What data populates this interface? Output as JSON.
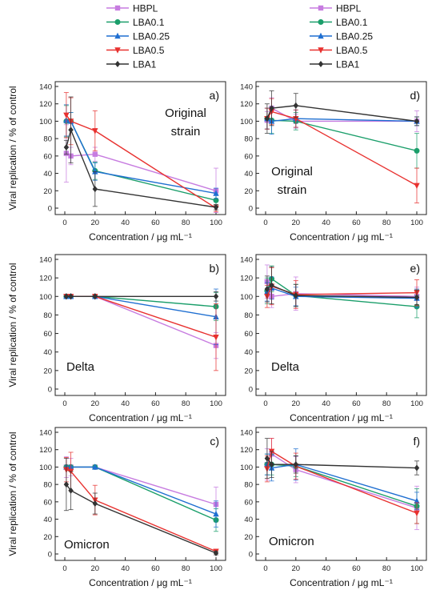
{
  "series_styles": [
    {
      "name": "HBPL",
      "color": "#c77ce0",
      "marker": "square"
    },
    {
      "name": "LBA0.1",
      "color": "#1a9e6a",
      "marker": "circle"
    },
    {
      "name": "LBA0.25",
      "color": "#1f6fd1",
      "marker": "triangle-up"
    },
    {
      "name": "LBA0.5",
      "color": "#e8312f",
      "marker": "triangle-down"
    },
    {
      "name": "LBA1",
      "color": "#333333",
      "marker": "diamond"
    }
  ],
  "chart_data": [
    {
      "panel": "a)",
      "annotation": [
        "Original",
        "strain"
      ],
      "type": "line",
      "xlabel": "Concentration / μg mL⁻¹",
      "ylabel": "Viral replication / % of control",
      "xlim": [
        0,
        100
      ],
      "ylim": [
        0,
        140
      ],
      "xticks": [
        0,
        20,
        40,
        60,
        80,
        100
      ],
      "yticks": [
        0,
        20,
        40,
        60,
        80,
        100,
        120,
        140
      ],
      "x": [
        1,
        4,
        20,
        100
      ],
      "series": [
        {
          "name": "HBPL",
          "values": [
            63,
            60,
            62,
            20
          ],
          "errors": [
            33,
            10,
            8,
            26
          ]
        },
        {
          "name": "LBA0.1",
          "values": [
            100,
            100,
            43,
            9
          ],
          "errors": [
            18,
            10,
            10,
            6
          ]
        },
        {
          "name": "LBA0.25",
          "values": [
            101,
            100,
            42,
            17
          ],
          "errors": [
            18,
            10,
            10,
            6
          ]
        },
        {
          "name": "LBA0.5",
          "values": [
            107,
            100,
            89,
            0
          ],
          "errors": [
            26,
            27,
            23,
            4
          ]
        },
        {
          "name": "LBA1",
          "values": [
            70,
            90,
            22,
            1
          ],
          "errors": [
            8,
            38,
            20,
            3
          ]
        }
      ]
    },
    {
      "panel": "d)",
      "annotation": [
        "Original",
        "strain"
      ],
      "type": "line",
      "xlabel": "Concentration / μg mL⁻¹",
      "ylabel": "",
      "xlim": [
        0,
        100
      ],
      "ylim": [
        0,
        140
      ],
      "xticks": [
        0,
        20,
        40,
        60,
        80,
        100
      ],
      "yticks": [
        0,
        20,
        40,
        60,
        80,
        100,
        120,
        140
      ],
      "x": [
        1,
        4,
        20,
        100
      ],
      "series": [
        {
          "name": "HBPL",
          "values": [
            101,
            115,
            100,
            100
          ],
          "errors": [
            10,
            12,
            8,
            12
          ]
        },
        {
          "name": "LBA0.1",
          "values": [
            103,
            101,
            100,
            66
          ],
          "errors": [
            12,
            15,
            10,
            20
          ]
        },
        {
          "name": "LBA0.25",
          "values": [
            103,
            100,
            103,
            100
          ],
          "errors": [
            12,
            15,
            10,
            5
          ]
        },
        {
          "name": "LBA0.5",
          "values": [
            103,
            111,
            103,
            26
          ],
          "errors": [
            12,
            15,
            10,
            20
          ]
        },
        {
          "name": "LBA1",
          "values": [
            103,
            115,
            118,
            100
          ],
          "errors": [
            17,
            20,
            14,
            5
          ]
        }
      ]
    },
    {
      "panel": "b)",
      "annotation": [
        "Delta"
      ],
      "type": "line",
      "xlabel": "Concentration / μg mL⁻¹",
      "ylabel": "Viral replication / % of control",
      "xlim": [
        0,
        100
      ],
      "ylim": [
        0,
        140
      ],
      "xticks": [
        0,
        20,
        40,
        60,
        80,
        100
      ],
      "yticks": [
        0,
        20,
        40,
        60,
        80,
        100,
        120,
        140
      ],
      "x": [
        1,
        4,
        20,
        100
      ],
      "series": [
        {
          "name": "HBPL",
          "values": [
            100,
            100,
            100,
            47
          ],
          "errors": [
            0,
            0,
            0,
            14
          ]
        },
        {
          "name": "LBA0.1",
          "values": [
            100,
            100,
            100,
            89
          ],
          "errors": [
            0,
            0,
            0,
            15
          ]
        },
        {
          "name": "LBA0.25",
          "values": [
            100,
            100,
            100,
            78
          ],
          "errors": [
            0,
            0,
            0,
            30
          ]
        },
        {
          "name": "LBA0.5",
          "values": [
            100,
            100,
            100,
            56
          ],
          "errors": [
            0,
            0,
            0,
            36
          ]
        },
        {
          "name": "LBA1",
          "values": [
            100,
            100,
            100,
            100
          ],
          "errors": [
            0,
            0,
            0,
            5
          ]
        }
      ]
    },
    {
      "panel": "e)",
      "annotation": [
        "Delta"
      ],
      "type": "line",
      "xlabel": "Concentration / μg mL⁻¹",
      "ylabel": "",
      "xlim": [
        0,
        100
      ],
      "ylim": [
        0,
        140
      ],
      "xticks": [
        0,
        20,
        40,
        60,
        80,
        100
      ],
      "yticks": [
        0,
        20,
        40,
        60,
        80,
        100,
        120,
        140
      ],
      "x": [
        1,
        4,
        20,
        100
      ],
      "series": [
        {
          "name": "HBPL",
          "values": [
            116,
            100,
            103,
            100
          ],
          "errors": [
            18,
            12,
            18,
            10
          ]
        },
        {
          "name": "LBA0.1",
          "values": [
            106,
            119,
            101,
            89
          ],
          "errors": [
            14,
            14,
            12,
            12
          ]
        },
        {
          "name": "LBA0.25",
          "values": [
            105,
            109,
            100,
            98
          ],
          "errors": [
            10,
            12,
            10,
            10
          ]
        },
        {
          "name": "LBA0.5",
          "values": [
            100,
            111,
            102,
            104
          ],
          "errors": [
            12,
            20,
            15,
            14
          ]
        },
        {
          "name": "LBA1",
          "values": [
            108,
            112,
            101,
            99
          ],
          "errors": [
            14,
            20,
            12,
            8
          ]
        }
      ]
    },
    {
      "panel": "c)",
      "annotation": [
        "Omicron"
      ],
      "type": "line",
      "xlabel": "Concentration / μg mL⁻¹",
      "ylabel": "Viral replication / % of control",
      "xlim": [
        0,
        100
      ],
      "ylim": [
        0,
        140
      ],
      "xticks": [
        0,
        20,
        40,
        60,
        80,
        100
      ],
      "yticks": [
        0,
        20,
        40,
        60,
        80,
        100,
        120,
        140
      ],
      "x": [
        1,
        4,
        20,
        100
      ],
      "series": [
        {
          "name": "HBPL",
          "values": [
            100,
            100,
            100,
            57
          ],
          "errors": [
            12,
            10,
            0,
            20
          ]
        },
        {
          "name": "LBA0.1",
          "values": [
            100,
            100,
            100,
            39
          ],
          "errors": [
            0,
            0,
            0,
            13
          ]
        },
        {
          "name": "LBA0.25",
          "values": [
            100,
            100,
            100,
            46
          ],
          "errors": [
            0,
            0,
            0,
            15
          ]
        },
        {
          "name": "LBA0.5",
          "values": [
            97,
            95,
            62,
            3
          ],
          "errors": [
            14,
            22,
            17,
            2
          ]
        },
        {
          "name": "LBA1",
          "values": [
            80,
            73,
            58,
            1
          ],
          "errors": [
            30,
            22,
            12,
            2
          ]
        }
      ]
    },
    {
      "panel": "f)",
      "annotation": [
        "Omicron"
      ],
      "type": "line",
      "xlabel": "Concentration / μg mL⁻¹",
      "ylabel": "",
      "xlim": [
        0,
        100
      ],
      "ylim": [
        0,
        140
      ],
      "xticks": [
        0,
        20,
        40,
        60,
        80,
        100
      ],
      "yticks": [
        0,
        20,
        40,
        60,
        80,
        100,
        120,
        140
      ],
      "x": [
        1,
        4,
        20,
        100
      ],
      "series": [
        {
          "name": "HBPL",
          "values": [
            103,
            115,
            97,
            53
          ],
          "errors": [
            18,
            18,
            15,
            25
          ]
        },
        {
          "name": "LBA0.1",
          "values": [
            103,
            103,
            101,
            55
          ],
          "errors": [
            12,
            12,
            12,
            20
          ]
        },
        {
          "name": "LBA0.25",
          "values": [
            103,
            99,
            103,
            61
          ],
          "errors": [
            12,
            15,
            18,
            10
          ]
        },
        {
          "name": "LBA0.5",
          "values": [
            98,
            118,
            101,
            47
          ],
          "errors": [
            15,
            15,
            15,
            12
          ]
        },
        {
          "name": "LBA1",
          "values": [
            110,
            103,
            103,
            99
          ],
          "errors": [
            23,
            15,
            10,
            8
          ]
        }
      ]
    }
  ]
}
